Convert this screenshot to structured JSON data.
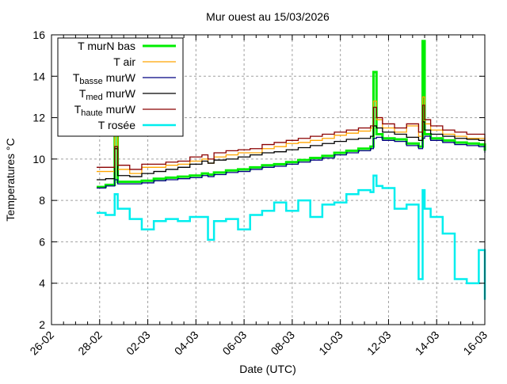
{
  "chart_data": {
    "type": "line",
    "title": "Mur ouest au 15/03/2026",
    "xlabel": "Date (UTC)",
    "ylabel": "Temperatures °C",
    "xlim": [
      "2026-02-26 00:00",
      "2026-03-16 00:00"
    ],
    "ylim": [
      2,
      16
    ],
    "x_ticks": [
      "26-02",
      "28-02",
      "02-03",
      "04-03",
      "06-03",
      "08-03",
      "10-03",
      "12-03",
      "14-03",
      "16-03"
    ],
    "y_ticks": [
      "2",
      "4",
      "6",
      "8",
      "10",
      "12",
      "14",
      "16"
    ],
    "grid": true,
    "legend_position": "top-left",
    "x": [
      "2026-02-27 21:00",
      "2026-02-28 06:00",
      "2026-02-28 15:00",
      "2026-02-28 18:00",
      "2026-03-01 06:00",
      "2026-03-01 18:00",
      "2026-03-02 06:00",
      "2026-03-02 18:00",
      "2026-03-03 06:00",
      "2026-03-03 18:00",
      "2026-03-04 06:00",
      "2026-03-04 12:00",
      "2026-03-04 18:00",
      "2026-03-05 06:00",
      "2026-03-05 18:00",
      "2026-03-06 06:00",
      "2026-03-06 18:00",
      "2026-03-07 06:00",
      "2026-03-07 18:00",
      "2026-03-08 06:00",
      "2026-03-08 18:00",
      "2026-03-09 06:00",
      "2026-03-09 18:00",
      "2026-03-10 06:00",
      "2026-03-10 18:00",
      "2026-03-11 06:00",
      "2026-03-11 09:00",
      "2026-03-11 12:00",
      "2026-03-11 18:00",
      "2026-03-12 06:00",
      "2026-03-12 18:00",
      "2026-03-13 06:00",
      "2026-03-13 10:00",
      "2026-03-13 12:00",
      "2026-03-13 18:00",
      "2026-03-14 06:00",
      "2026-03-14 18:00",
      "2026-03-15 06:00",
      "2026-03-15 18:00",
      "2026-03-16 00:00"
    ],
    "series": [
      {
        "name": "T murN bas",
        "label_main": "T murN bas",
        "label_sub": "",
        "label_tail": "",
        "color": "#00ee00",
        "width": 3,
        "values": [
          8.65,
          8.75,
          13.5,
          8.9,
          8.9,
          8.95,
          9.05,
          9.1,
          9.15,
          9.2,
          9.3,
          9.25,
          9.35,
          9.45,
          9.5,
          9.6,
          9.7,
          9.75,
          9.85,
          9.95,
          10.05,
          10.15,
          10.3,
          10.4,
          10.5,
          10.6,
          14.2,
          11.2,
          11.0,
          10.95,
          10.75,
          10.6,
          15.7,
          11.2,
          11.0,
          10.9,
          10.8,
          10.75,
          10.7,
          10.4
        ]
      },
      {
        "name": "T air",
        "label_main": "T air",
        "label_sub": "",
        "label_tail": "",
        "color": "#ffa500",
        "width": 1.3,
        "values": [
          9.4,
          9.4,
          12.0,
          9.5,
          9.3,
          9.6,
          9.6,
          9.7,
          9.75,
          9.9,
          10.0,
          9.8,
          10.1,
          10.2,
          10.3,
          10.3,
          10.5,
          10.6,
          10.75,
          10.8,
          10.9,
          11.0,
          11.15,
          11.25,
          11.35,
          11.5,
          12.8,
          11.9,
          11.5,
          11.3,
          11.6,
          11.1,
          13.0,
          11.7,
          11.4,
          11.2,
          11.1,
          11.0,
          11.0,
          10.7
        ]
      },
      {
        "name": "Tbasse murW",
        "label_main": "T",
        "label_sub": "basse",
        "label_tail": " murW",
        "color": "#000080",
        "width": 1.3,
        "values": [
          8.6,
          8.7,
          9.0,
          8.8,
          8.8,
          8.85,
          8.95,
          9.0,
          9.05,
          9.1,
          9.2,
          9.15,
          9.25,
          9.35,
          9.4,
          9.5,
          9.6,
          9.65,
          9.75,
          9.85,
          9.95,
          10.05,
          10.2,
          10.3,
          10.4,
          10.5,
          11.0,
          11.05,
          10.9,
          10.85,
          10.65,
          10.5,
          11.0,
          11.1,
          10.9,
          10.8,
          10.7,
          10.65,
          10.6,
          10.3
        ]
      },
      {
        "name": "Tmed murW",
        "label_main": "T",
        "label_sub": "med",
        "label_tail": " murW",
        "color": "#000000",
        "width": 1.3,
        "values": [
          9.0,
          9.05,
          10.5,
          9.2,
          9.15,
          9.3,
          9.4,
          9.5,
          9.6,
          9.75,
          9.9,
          9.8,
          9.95,
          10.0,
          10.1,
          10.2,
          10.3,
          10.35,
          10.45,
          10.55,
          10.65,
          10.75,
          10.85,
          10.95,
          11.0,
          11.1,
          11.6,
          11.5,
          11.3,
          11.2,
          11.05,
          10.9,
          11.8,
          11.4,
          11.2,
          11.1,
          11.0,
          10.95,
          10.9,
          10.6
        ]
      },
      {
        "name": "Thaute murW",
        "label_main": "T",
        "label_sub": "haute",
        "label_tail": " murW",
        "color": "#8b0000",
        "width": 1.3,
        "values": [
          9.6,
          9.6,
          10.6,
          9.7,
          9.5,
          9.75,
          9.75,
          9.85,
          9.9,
          10.1,
          10.2,
          10.0,
          10.3,
          10.4,
          10.45,
          10.5,
          10.7,
          10.8,
          10.9,
          11.0,
          11.1,
          11.2,
          11.3,
          11.4,
          11.5,
          11.6,
          12.5,
          12.0,
          11.7,
          11.5,
          11.7,
          11.3,
          12.6,
          11.9,
          11.6,
          11.4,
          11.3,
          11.2,
          11.2,
          10.9
        ]
      },
      {
        "name": "T rosée",
        "label_main": "T rosée",
        "label_sub": "",
        "label_tail": "",
        "color": "#00eeee",
        "width": 2.5,
        "values": [
          7.4,
          7.3,
          8.3,
          7.6,
          7.1,
          6.6,
          7.0,
          7.1,
          7.0,
          7.2,
          7.2,
          6.1,
          7.0,
          7.1,
          6.6,
          7.3,
          7.5,
          7.9,
          7.5,
          8.0,
          7.2,
          7.8,
          7.9,
          8.3,
          8.5,
          8.4,
          9.2,
          8.7,
          8.6,
          7.6,
          7.8,
          4.2,
          8.5,
          7.6,
          7.2,
          6.4,
          4.2,
          4.0,
          5.6,
          3.2
        ]
      }
    ]
  }
}
